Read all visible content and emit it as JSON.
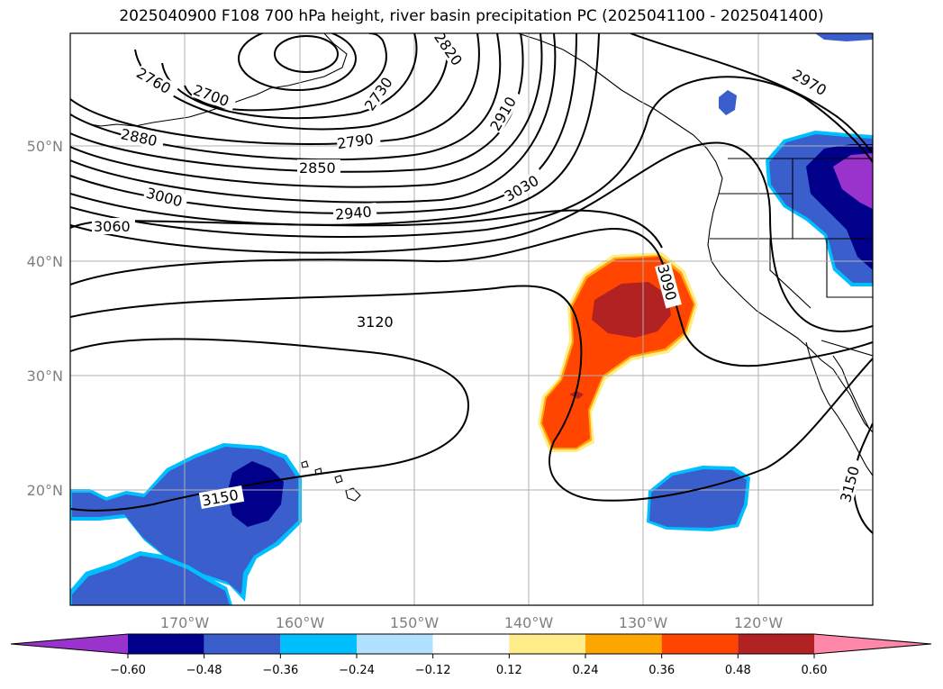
{
  "title": "2025040900 F108 700 hPa height, river basin precipitation PC (2025041100 - 2025041400)",
  "lat_labels": [
    "50°N",
    "40°N",
    "30°N",
    "20°N"
  ],
  "lon_labels": [
    "170°W",
    "160°W",
    "150°W",
    "140°W",
    "130°W",
    "120°W"
  ],
  "contour_labels": [
    "2760",
    "2700",
    "2730",
    "2820",
    "2910",
    "2970",
    "2880",
    "2790",
    "2850",
    "3000",
    "2940",
    "3030",
    "3060",
    "3090",
    "3120",
    "3150",
    "3150"
  ],
  "colorbar": {
    "ticks": [
      "−0.60",
      "−0.48",
      "−0.36",
      "−0.24",
      "−0.12",
      "0.12",
      "0.24",
      "0.36",
      "0.48",
      "0.60"
    ],
    "colors": [
      "#9933cc",
      "#00008b",
      "#3a5fcd",
      "#00bfff",
      "#b0e2ff",
      "#ffffff",
      "#ffec8b",
      "#ffa500",
      "#ff4500",
      "#b22222",
      "#ff88aa"
    ]
  },
  "colors": {
    "positive_core": "#b22222",
    "positive_main": "#ff4500",
    "negative_deep": "#00008b",
    "negative_main": "#3a5fcd",
    "negative_light": "#00bfff",
    "negative_extreme": "#9933cc"
  }
}
